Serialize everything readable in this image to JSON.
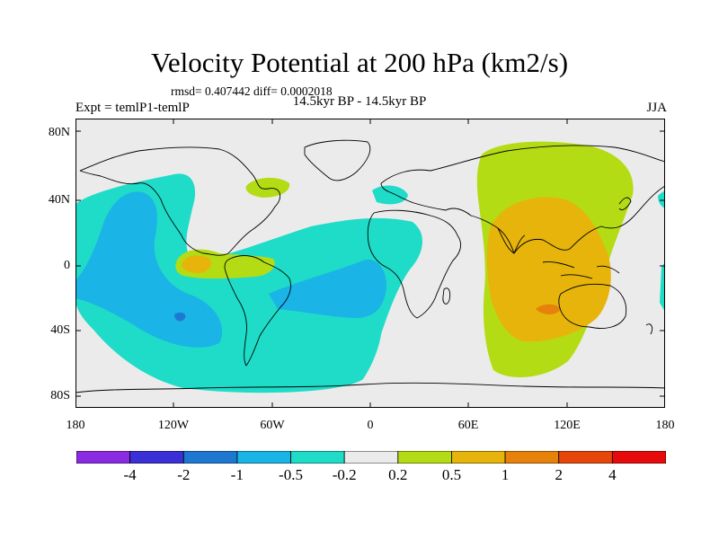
{
  "title": "Velocity Potential at 200 hPa (km2/s)",
  "stats": "rmsd= 0.407442 diff= 0.0002018",
  "expt": "Expt = temlP1-temlP",
  "period": "14.5kyr BP - 14.5kyr BP",
  "season": "JJA",
  "y_ticks": [
    "80N",
    "40N",
    "0",
    "40S",
    "80S"
  ],
  "x_ticks": [
    "180",
    "120W",
    "60W",
    "0",
    "60E",
    "120E",
    "180"
  ],
  "colorbar": {
    "labels": [
      "-4",
      "-2",
      "-1",
      "-0.5",
      "-0.2",
      "0.2",
      "0.5",
      "1",
      "2",
      "4"
    ],
    "colors": [
      "#8a2be2",
      "#3b2fd6",
      "#1e78d2",
      "#1ab4e6",
      "#1edcc8",
      "#ebebeb",
      "#b4dc14",
      "#e6b40a",
      "#e6820a",
      "#e6460a",
      "#e60a0a"
    ]
  },
  "fill_colors": {
    "ocean_bg": "#ebebeb",
    "neg_light": "#1edcc8",
    "neg_mid": "#1ab4e6",
    "neg_strong": "#1e78d2",
    "pos_light": "#b4dc14",
    "pos_mid": "#e6b40a",
    "pos_strong": "#e6820a"
  }
}
